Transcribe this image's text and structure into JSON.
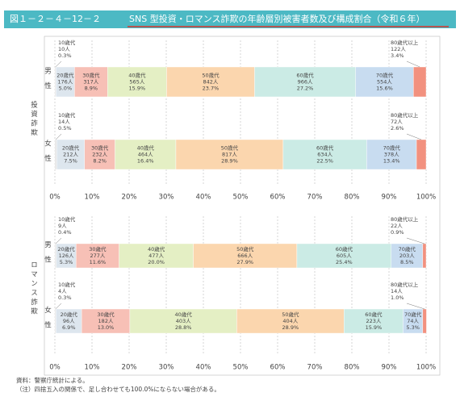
{
  "header": {
    "figure_number": "図１－２－４－12－２",
    "title": "SNS 型投資・ロマンス詐欺の年齢層別被害者数及び構成割合（令和６年）"
  },
  "chart_data": [
    {
      "type": "bar",
      "orientation": "horizontal",
      "stacked": true,
      "group_label": "投資詐欺",
      "categories": [
        "男性",
        "女性"
      ],
      "series": [
        {
          "name": "10歳代",
          "color": "#e6e6e6",
          "values": [
            0.3,
            0.5
          ],
          "value_labels": [
            "0.3%",
            "0.5%"
          ],
          "count_labels": [
            "10人",
            "14人"
          ]
        },
        {
          "name": "20歳代",
          "color": "#dde6ee",
          "values": [
            5.0,
            7.5
          ],
          "value_labels": [
            "5.0%",
            "7.5%"
          ],
          "count_labels": [
            "176人",
            "212人"
          ]
        },
        {
          "name": "30歳代",
          "color": "#f7c0b6",
          "values": [
            8.9,
            8.2
          ],
          "value_labels": [
            "8.9%",
            "8.2%"
          ],
          "count_labels": [
            "317人",
            "232人"
          ]
        },
        {
          "name": "40歳代",
          "color": "#e4efc4",
          "values": [
            15.9,
            16.4
          ],
          "value_labels": [
            "15.9%",
            "16.4%"
          ],
          "count_labels": [
            "565人",
            "464人"
          ]
        },
        {
          "name": "50歳代",
          "color": "#fbd6ae",
          "values": [
            23.7,
            28.9
          ],
          "value_labels": [
            "23.7%",
            "28.9%"
          ],
          "count_labels": [
            "842人",
            "817人"
          ]
        },
        {
          "name": "60歳代",
          "color": "#cbebe5",
          "values": [
            27.2,
            22.5
          ],
          "value_labels": [
            "27.2%",
            "22.5%"
          ],
          "count_labels": [
            "966人",
            "634人"
          ]
        },
        {
          "name": "70歳代",
          "color": "#c8dcf0",
          "values": [
            15.6,
            13.4
          ],
          "value_labels": [
            "15.6%",
            "13.4%"
          ],
          "count_labels": [
            "554人",
            "378人"
          ]
        },
        {
          "name": "80歳代以上",
          "color": "#f2917f",
          "values": [
            3.4,
            2.6
          ],
          "value_labels": [
            "3.4%",
            "2.6%"
          ],
          "count_labels": [
            "122人",
            "72人"
          ]
        }
      ],
      "xlim": [
        0,
        100
      ],
      "xticks": [
        {
          "value": 0,
          "label": "0%"
        },
        {
          "value": 10,
          "label": "10%"
        },
        {
          "value": 20,
          "label": "20%"
        },
        {
          "value": 30,
          "label": "30%"
        },
        {
          "value": 40,
          "label": "40%"
        },
        {
          "value": 50,
          "label": "50%"
        },
        {
          "value": 60,
          "label": "60%"
        },
        {
          "value": 70,
          "label": "70%"
        },
        {
          "value": 80,
          "label": "80%"
        },
        {
          "value": 90,
          "label": "90%"
        },
        {
          "value": 100,
          "label": "100%"
        }
      ],
      "grid": true
    },
    {
      "type": "bar",
      "orientation": "horizontal",
      "stacked": true,
      "group_label": "ロマンス詐欺",
      "categories": [
        "男性",
        "女性"
      ],
      "series": [
        {
          "name": "10歳代",
          "color": "#e6e6e6",
          "values": [
            0.4,
            0.3
          ],
          "value_labels": [
            "0.4%",
            "0.3%"
          ],
          "count_labels": [
            "9人",
            "4人"
          ]
        },
        {
          "name": "20歳代",
          "color": "#dde6ee",
          "values": [
            5.3,
            6.9
          ],
          "value_labels": [
            "5.3%",
            "6.9%"
          ],
          "count_labels": [
            "126人",
            "96人"
          ]
        },
        {
          "name": "30歳代",
          "color": "#f7c0b6",
          "values": [
            11.6,
            13.0
          ],
          "value_labels": [
            "11.6%",
            "13.0%"
          ],
          "count_labels": [
            "277人",
            "182人"
          ]
        },
        {
          "name": "40歳代",
          "color": "#e4efc4",
          "values": [
            20.0,
            28.8
          ],
          "value_labels": [
            "20.0%",
            "28.8%"
          ],
          "count_labels": [
            "477人",
            "403人"
          ]
        },
        {
          "name": "50歳代",
          "color": "#fbd6ae",
          "values": [
            27.9,
            28.9
          ],
          "value_labels": [
            "27.9%",
            "28.9%"
          ],
          "count_labels": [
            "666人",
            "404人"
          ]
        },
        {
          "name": "60歳代",
          "color": "#cbebe5",
          "values": [
            25.4,
            15.9
          ],
          "value_labels": [
            "25.4%",
            "15.9%"
          ],
          "count_labels": [
            "605人",
            "223人"
          ]
        },
        {
          "name": "70歳代",
          "color": "#c8dcf0",
          "values": [
            8.5,
            5.3
          ],
          "value_labels": [
            "8.5%",
            "5.3%"
          ],
          "count_labels": [
            "203人",
            "74人"
          ]
        },
        {
          "name": "80歳代以上",
          "color": "#f2917f",
          "values": [
            0.9,
            1.0
          ],
          "value_labels": [
            "0.9%",
            "1.0%"
          ],
          "count_labels": [
            "22人",
            "14人"
          ]
        }
      ],
      "xlim": [
        0,
        100
      ],
      "xticks": [
        {
          "value": 0,
          "label": "0%"
        },
        {
          "value": 10,
          "label": "10%"
        },
        {
          "value": 20,
          "label": "20%"
        },
        {
          "value": 30,
          "label": "30%"
        },
        {
          "value": 40,
          "label": "40%"
        },
        {
          "value": 50,
          "label": "50%"
        },
        {
          "value": 60,
          "label": "60%"
        },
        {
          "value": 70,
          "label": "70%"
        },
        {
          "value": 80,
          "label": "80%"
        },
        {
          "value": 90,
          "label": "90%"
        },
        {
          "value": 100,
          "label": "100%"
        }
      ],
      "grid": true
    }
  ],
  "notes": [
    "資料：警察庁統計による。",
    "（注）四捨五入の関係で、足し合わせても100.0%にならない場合がある。"
  ]
}
